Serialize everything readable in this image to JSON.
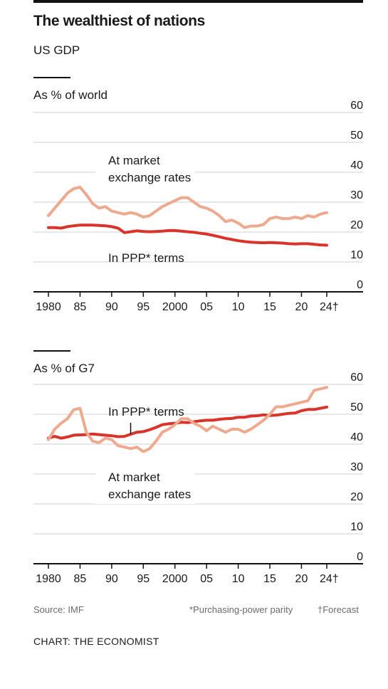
{
  "header": {
    "title": "The wealthiest of nations",
    "subtitle": "US GDP"
  },
  "footer": {
    "source": "Source: IMF",
    "footnote_ppp": "*Purchasing-power parity",
    "footnote_forecast": "†Forecast",
    "credit": "CHART: THE ECONOMIST"
  },
  "colors": {
    "market": "#eea98e",
    "ppp": "#d9342b",
    "grid": "#d2d2d2",
    "axis": "#121212"
  },
  "chart_data": [
    {
      "type": "line",
      "title": "As % of world",
      "x_tick_labels": [
        "1980",
        "85",
        "90",
        "95",
        "2000",
        "05",
        "10",
        "15",
        "20",
        "24†"
      ],
      "x_tick_values": [
        1980,
        1985,
        1990,
        1995,
        2000,
        2005,
        2010,
        2015,
        2020,
        2024
      ],
      "y_tick_labels": [
        "0",
        "10",
        "20",
        "30",
        "40",
        "50",
        "60"
      ],
      "xlim": [
        1980,
        2024
      ],
      "ylim": [
        0,
        60
      ],
      "grid": true,
      "x": [
        1980,
        1981,
        1982,
        1983,
        1984,
        1985,
        1986,
        1987,
        1988,
        1989,
        1990,
        1991,
        1992,
        1993,
        1994,
        1995,
        1996,
        1997,
        1998,
        1999,
        2000,
        2001,
        2002,
        2003,
        2004,
        2005,
        2006,
        2007,
        2008,
        2009,
        2010,
        2011,
        2012,
        2013,
        2014,
        2015,
        2016,
        2017,
        2018,
        2019,
        2020,
        2021,
        2022,
        2023,
        2024
      ],
      "series": [
        {
          "name": "At market exchange rates",
          "label_lines": [
            "At market",
            "exchange rates"
          ],
          "values": [
            25.5,
            28,
            30.5,
            33,
            34.5,
            35,
            32.5,
            29.5,
            28,
            28.5,
            27,
            26.5,
            26,
            26.5,
            26,
            25,
            25.5,
            27,
            28.5,
            29.5,
            30.5,
            31.5,
            31.5,
            30,
            28.5,
            28,
            27,
            25.5,
            23.5,
            24,
            23,
            21.5,
            22,
            22,
            22.5,
            24.5,
            25,
            24.5,
            24.5,
            25,
            24.5,
            25.5,
            25,
            26,
            26.5
          ]
        },
        {
          "name": "In PPP* terms",
          "label_lines": [
            "In PPP* terms"
          ],
          "values": [
            21.5,
            21.5,
            21.3,
            21.8,
            22.1,
            22.3,
            22.3,
            22.3,
            22.2,
            22.1,
            21.8,
            21.3,
            19.8,
            20.1,
            20.4,
            20.2,
            20.1,
            20.2,
            20.3,
            20.5,
            20.5,
            20.3,
            20.1,
            19.9,
            19.6,
            19.3,
            18.9,
            18.4,
            17.9,
            17.5,
            17.1,
            16.8,
            16.6,
            16.5,
            16.4,
            16.5,
            16.4,
            16.3,
            16.1,
            16,
            16.1,
            16.1,
            15.9,
            15.7,
            15.6
          ]
        }
      ]
    },
    {
      "type": "line",
      "title": "As % of G7",
      "x_tick_labels": [
        "1980",
        "85",
        "90",
        "95",
        "2000",
        "05",
        "10",
        "15",
        "20",
        "24†"
      ],
      "x_tick_values": [
        1980,
        1985,
        1990,
        1995,
        2000,
        2005,
        2010,
        2015,
        2020,
        2024
      ],
      "y_tick_labels": [
        "0",
        "10",
        "20",
        "30",
        "40",
        "50",
        "60"
      ],
      "xlim": [
        1980,
        2024
      ],
      "ylim": [
        0,
        60
      ],
      "grid": true,
      "x": [
        1980,
        1981,
        1982,
        1983,
        1984,
        1985,
        1986,
        1987,
        1988,
        1989,
        1990,
        1991,
        1992,
        1993,
        1994,
        1995,
        1996,
        1997,
        1998,
        1999,
        2000,
        2001,
        2002,
        2003,
        2004,
        2005,
        2006,
        2007,
        2008,
        2009,
        2010,
        2011,
        2012,
        2013,
        2014,
        2015,
        2016,
        2017,
        2018,
        2019,
        2020,
        2021,
        2022,
        2023,
        2024
      ],
      "series": [
        {
          "name": "In PPP* terms",
          "label_lines": [
            "In PPP* terms"
          ],
          "values": [
            42,
            42.6,
            42,
            42.4,
            43,
            43.1,
            43.2,
            43.4,
            43.2,
            43,
            42.8,
            42.5,
            42.6,
            43.3,
            44,
            44.2,
            44.8,
            45.6,
            46.5,
            46.8,
            47,
            47.3,
            47.2,
            47.5,
            47.8,
            48,
            48,
            48.3,
            48.5,
            48.6,
            49,
            49,
            49.4,
            49.5,
            49.8,
            49.6,
            49.7,
            50,
            50.3,
            50.4,
            51.2,
            51.6,
            51.6,
            52,
            52.4
          ]
        },
        {
          "name": "At market exchange rates",
          "label_lines": [
            "At market",
            "exchange rates"
          ],
          "values": [
            41.5,
            45,
            47,
            48.5,
            51.5,
            52,
            44,
            41,
            40.5,
            42,
            41.5,
            39.5,
            39,
            38.5,
            39,
            37.5,
            38.5,
            41,
            44,
            45,
            46.5,
            48.5,
            48.5,
            47,
            46,
            44.5,
            46,
            45,
            44,
            45,
            45,
            44,
            45,
            46.5,
            48,
            50,
            52.5,
            52.5,
            53,
            53.5,
            54,
            54.5,
            58,
            58.5,
            59
          ]
        }
      ]
    }
  ]
}
